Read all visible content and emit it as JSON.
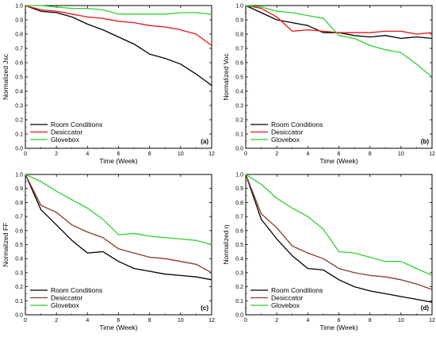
{
  "chart_data": [
    {
      "type": "line",
      "panel_label": "(a)",
      "xlabel": "Time (Week)",
      "ylabel": "Normalized Jsc",
      "xlim": [
        0,
        12
      ],
      "ylim": [
        0.0,
        1.0
      ],
      "xticks": [
        0,
        2,
        4,
        6,
        8,
        10,
        12
      ],
      "yticks": [
        "0.0",
        "0.1",
        "0.2",
        "0.3",
        "0.4",
        "0.5",
        "0.6",
        "0.7",
        "0.8",
        "0.9",
        "1.0"
      ],
      "legend_position": "bottom-left",
      "series": [
        {
          "name": "Room Conditions",
          "color": "#000000",
          "x": [
            0,
            1,
            2,
            3,
            4,
            5,
            6,
            7,
            8,
            9,
            10,
            11,
            12
          ],
          "y": [
            1.0,
            0.96,
            0.95,
            0.92,
            0.87,
            0.83,
            0.78,
            0.73,
            0.66,
            0.63,
            0.59,
            0.52,
            0.44
          ]
        },
        {
          "name": "Desiccator",
          "color": "#e8141b",
          "x": [
            0,
            1,
            2,
            3,
            4,
            5,
            6,
            7,
            8,
            9,
            10,
            11,
            12
          ],
          "y": [
            1.0,
            0.97,
            0.96,
            0.94,
            0.92,
            0.91,
            0.89,
            0.88,
            0.86,
            0.85,
            0.83,
            0.8,
            0.72
          ]
        },
        {
          "name": "Glovebox",
          "color": "#2ed02e",
          "x": [
            0,
            1,
            2,
            3,
            4,
            5,
            6,
            7,
            8,
            9,
            10,
            11,
            12
          ],
          "y": [
            1.0,
            1.0,
            0.99,
            0.98,
            0.98,
            0.97,
            0.94,
            0.94,
            0.94,
            0.94,
            0.95,
            0.95,
            0.94
          ]
        }
      ]
    },
    {
      "type": "line",
      "panel_label": "(b)",
      "xlabel": "Time (Week)",
      "ylabel": "Normalized Voc",
      "xlim": [
        0,
        12
      ],
      "ylim": [
        0.0,
        1.0
      ],
      "xticks": [
        0,
        2,
        4,
        6,
        8,
        10,
        12
      ],
      "yticks": [
        "0.0",
        "0.1",
        "0.2",
        "0.3",
        "0.4",
        "0.5",
        "0.6",
        "0.7",
        "0.8",
        "0.9",
        "1.0"
      ],
      "legend_position": "bottom-left",
      "series": [
        {
          "name": "Room Conditions",
          "color": "#000000",
          "x": [
            0,
            1,
            2,
            3,
            4,
            5,
            6,
            7,
            8,
            9,
            10,
            11,
            12
          ],
          "y": [
            1.0,
            0.95,
            0.9,
            0.88,
            0.86,
            0.81,
            0.81,
            0.79,
            0.78,
            0.79,
            0.77,
            0.78,
            0.77
          ]
        },
        {
          "name": "Desiccator",
          "color": "#e8141b",
          "x": [
            0,
            1,
            2,
            3,
            4,
            5,
            6,
            7,
            8,
            9,
            10,
            11,
            12
          ],
          "y": [
            1.0,
            0.98,
            0.92,
            0.82,
            0.83,
            0.82,
            0.81,
            0.81,
            0.81,
            0.82,
            0.82,
            0.8,
            0.81
          ]
        },
        {
          "name": "Glovebox",
          "color": "#2ed02e",
          "x": [
            0,
            1,
            2,
            3,
            4,
            5,
            6,
            7,
            8,
            9,
            10,
            11,
            12
          ],
          "y": [
            1.0,
            0.99,
            0.96,
            0.95,
            0.93,
            0.91,
            0.79,
            0.77,
            0.72,
            0.69,
            0.67,
            0.59,
            0.5
          ]
        }
      ]
    },
    {
      "type": "line",
      "panel_label": "(c)",
      "xlabel": "Time (Week)",
      "ylabel": "Normalized FF",
      "xlim": [
        0,
        12
      ],
      "ylim": [
        0.0,
        1.0
      ],
      "xticks": [
        0,
        2,
        4,
        6,
        8,
        10,
        12
      ],
      "yticks": [
        "0.0",
        "0.1",
        "0.2",
        "0.3",
        "0.4",
        "0.5",
        "0.6",
        "0.7",
        "0.8",
        "0.9",
        "1.0"
      ],
      "legend_position": "bottom-left",
      "series": [
        {
          "name": "Room Conditions",
          "color": "#000000",
          "x": [
            0,
            1,
            2,
            3,
            4,
            5,
            6,
            7,
            8,
            9,
            10,
            11,
            12
          ],
          "y": [
            1.0,
            0.75,
            0.64,
            0.53,
            0.44,
            0.45,
            0.38,
            0.33,
            0.31,
            0.29,
            0.28,
            0.27,
            0.25
          ]
        },
        {
          "name": "Desiccator",
          "color": "#8b3a2a",
          "x": [
            0,
            1,
            2,
            3,
            4,
            5,
            6,
            7,
            8,
            9,
            10,
            11,
            12
          ],
          "y": [
            1.0,
            0.78,
            0.73,
            0.64,
            0.59,
            0.55,
            0.47,
            0.44,
            0.41,
            0.4,
            0.38,
            0.36,
            0.3
          ]
        },
        {
          "name": "Glovebox",
          "color": "#2ed02e",
          "x": [
            0,
            1,
            2,
            3,
            4,
            5,
            6,
            7,
            8,
            9,
            10,
            11,
            12
          ],
          "y": [
            1.0,
            0.95,
            0.88,
            0.82,
            0.76,
            0.68,
            0.57,
            0.58,
            0.56,
            0.55,
            0.54,
            0.53,
            0.5
          ]
        }
      ]
    },
    {
      "type": "line",
      "panel_label": "(d)",
      "xlabel": "Time (Week)",
      "ylabel": "Normalized η",
      "xlim": [
        0,
        12
      ],
      "ylim": [
        0.0,
        1.0
      ],
      "xticks": [
        0,
        2,
        4,
        6,
        8,
        10,
        12
      ],
      "yticks": [
        "0.0",
        "0.1",
        "0.2",
        "0.3",
        "0.4",
        "0.5",
        "0.6",
        "0.7",
        "0.8",
        "0.9",
        "1.0"
      ],
      "legend_position": "bottom-left",
      "series": [
        {
          "name": "Room Conditions",
          "color": "#000000",
          "x": [
            0,
            1,
            2,
            3,
            4,
            5,
            6,
            7,
            8,
            9,
            10,
            11,
            12
          ],
          "y": [
            1.0,
            0.68,
            0.54,
            0.42,
            0.33,
            0.32,
            0.25,
            0.2,
            0.17,
            0.15,
            0.13,
            0.11,
            0.09
          ]
        },
        {
          "name": "Desiccator",
          "color": "#8b3a2a",
          "x": [
            0,
            1,
            2,
            3,
            4,
            5,
            6,
            7,
            8,
            9,
            10,
            11,
            12
          ],
          "y": [
            1.0,
            0.72,
            0.62,
            0.49,
            0.44,
            0.4,
            0.33,
            0.3,
            0.28,
            0.27,
            0.25,
            0.22,
            0.18
          ]
        },
        {
          "name": "Glovebox",
          "color": "#2ed02e",
          "x": [
            0,
            1,
            2,
            3,
            4,
            5,
            6,
            7,
            8,
            9,
            10,
            11,
            12
          ],
          "y": [
            1.0,
            0.93,
            0.83,
            0.76,
            0.7,
            0.61,
            0.45,
            0.44,
            0.41,
            0.38,
            0.38,
            0.33,
            0.28
          ]
        }
      ]
    }
  ]
}
